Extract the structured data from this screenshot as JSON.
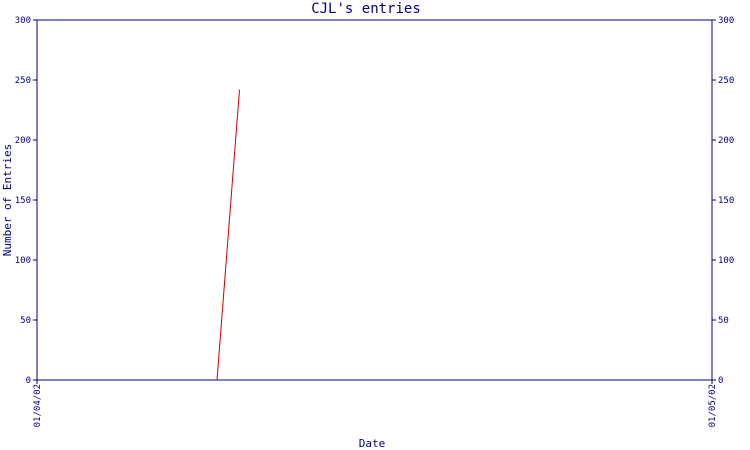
{
  "chart_data": {
    "type": "line",
    "title": "CJL's entries",
    "xlabel": "Date",
    "ylabel": "Number of Entries",
    "x_tick_labels": [
      "01/04/02",
      "01/05/02"
    ],
    "y_ticks": [
      0,
      50,
      100,
      150,
      200,
      250,
      300
    ],
    "y_tick_labels": [
      "0",
      "50",
      "100",
      "150",
      "200",
      "250",
      "300"
    ],
    "ylim": [
      0,
      300
    ],
    "xlim": [
      "2002-04-01",
      "2002-05-01"
    ],
    "grid": false,
    "series": [
      {
        "color": "#cc0000",
        "points": [
          {
            "x": "2002-04-09",
            "y": 0
          },
          {
            "x": "2002-04-10",
            "y": 242
          }
        ]
      }
    ]
  },
  "colors": {
    "axis": "#000080",
    "series": "#cc0000",
    "background": "#ffffff"
  }
}
